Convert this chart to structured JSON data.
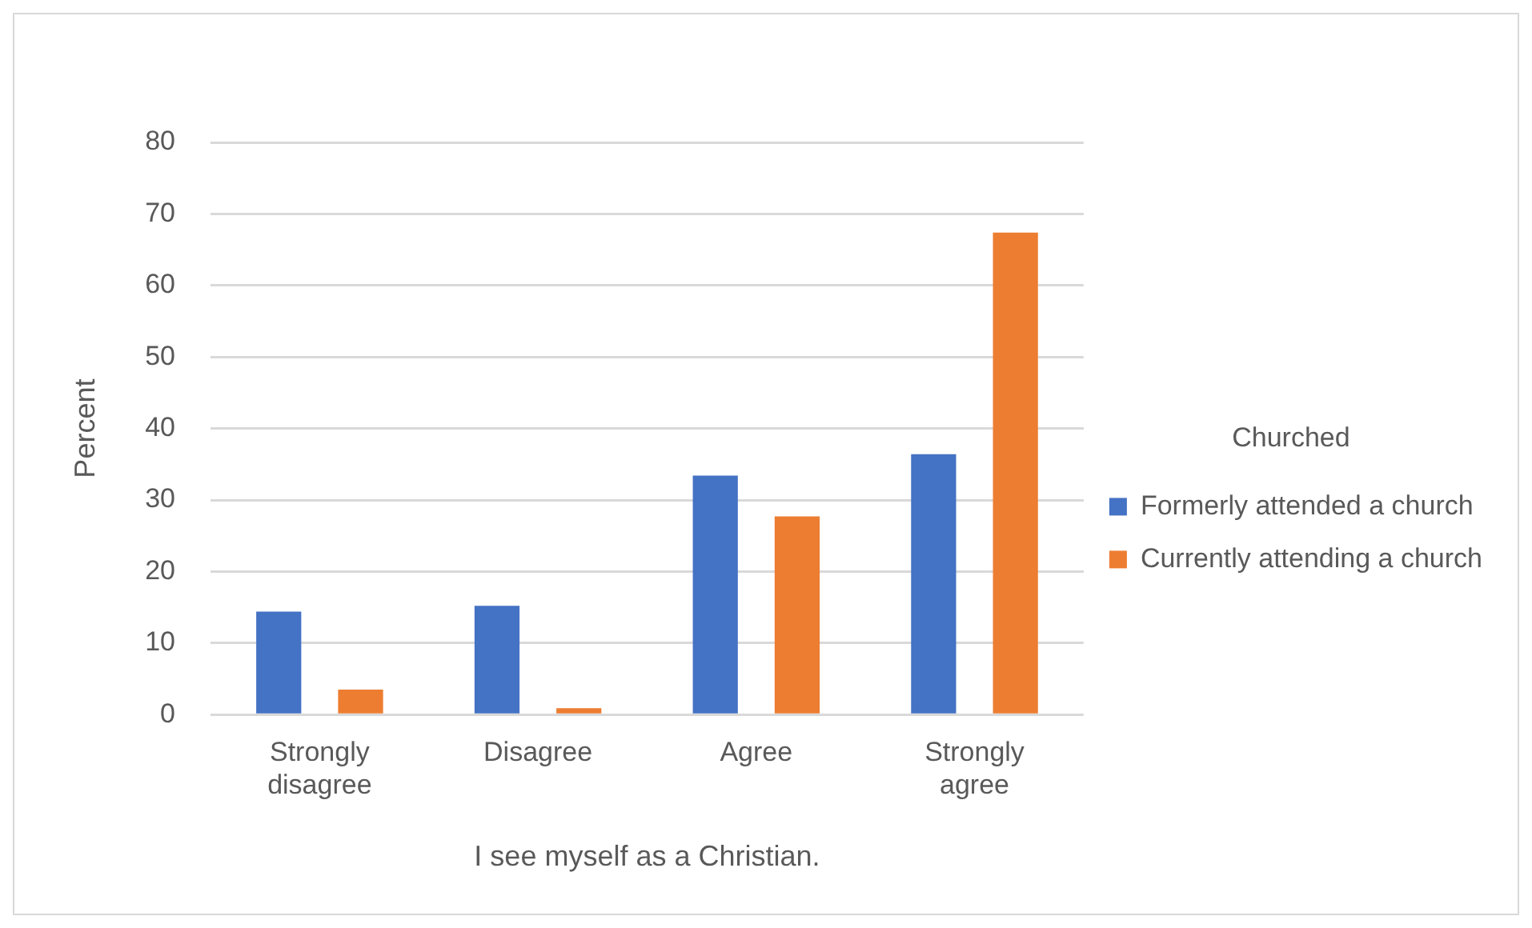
{
  "chart_data": {
    "type": "bar",
    "xlabel": "I see myself as a Christian.",
    "ylabel": "Percent",
    "legend_title": "Churched",
    "categories": [
      "Strongly disagree",
      "Disagree",
      "Agree",
      "Strongly agree"
    ],
    "series": [
      {
        "name": "Formerly attended a church",
        "color": "#4472c4",
        "values": [
          14.4,
          15.2,
          33.4,
          36.4
        ]
      },
      {
        "name": "Currently attending a church",
        "color": "#ed7d31",
        "values": [
          3.5,
          0.9,
          27.7,
          67.4
        ]
      }
    ],
    "ylim": [
      0,
      80
    ],
    "yticks": [
      0,
      10,
      20,
      30,
      40,
      50,
      60,
      70,
      80
    ],
    "grid": "y",
    "legend": "right"
  }
}
